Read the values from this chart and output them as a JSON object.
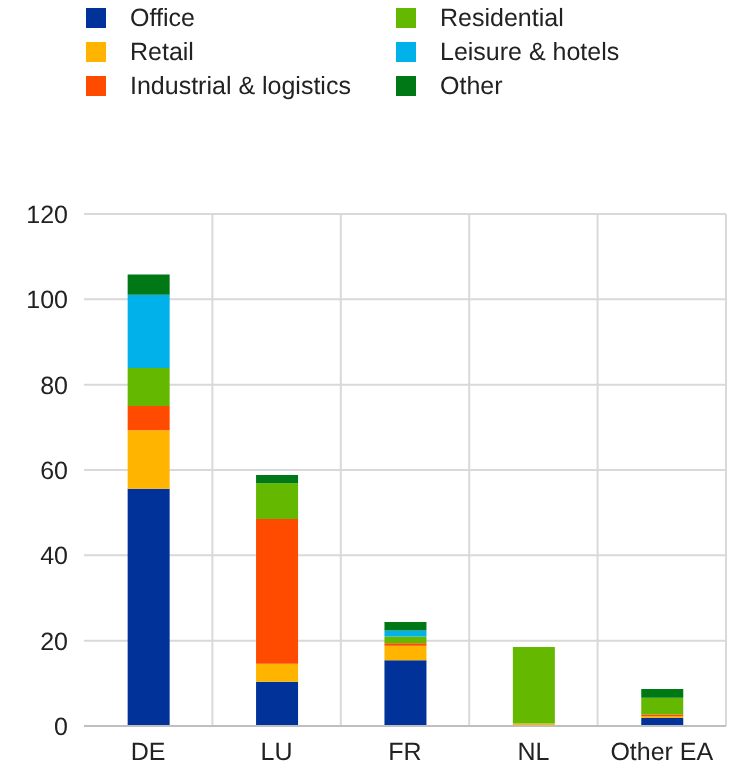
{
  "chart_data": {
    "type": "bar",
    "stacked": true,
    "categories": [
      "DE",
      "LU",
      "FR",
      "NL",
      "Other EA"
    ],
    "series": [
      {
        "name": "Office",
        "color": "#003299",
        "values": [
          55.6,
          10.4,
          15.4,
          0,
          1.9
        ]
      },
      {
        "name": "Retail",
        "color": "#ffb400",
        "values": [
          13.7,
          4.2,
          3.4,
          0.6,
          0.4
        ]
      },
      {
        "name": "Industrial & logistics",
        "color": "#ff4b00",
        "values": [
          5.7,
          33.9,
          0.6,
          0,
          0.4
        ]
      },
      {
        "name": "Residential",
        "color": "#65b800",
        "values": [
          8.9,
          8.4,
          1.6,
          17.9,
          3.9
        ]
      },
      {
        "name": "Leisure & hotels",
        "color": "#00b1ea",
        "values": [
          17.2,
          0,
          1.4,
          0,
          0
        ]
      },
      {
        "name": "Other",
        "color": "#007816",
        "values": [
          4.7,
          1.9,
          2.0,
          0,
          2.1
        ]
      }
    ],
    "ylim": [
      0,
      120
    ],
    "yticks": [
      0,
      20,
      40,
      60,
      80,
      100,
      120
    ],
    "grid": true,
    "legend": "top"
  }
}
